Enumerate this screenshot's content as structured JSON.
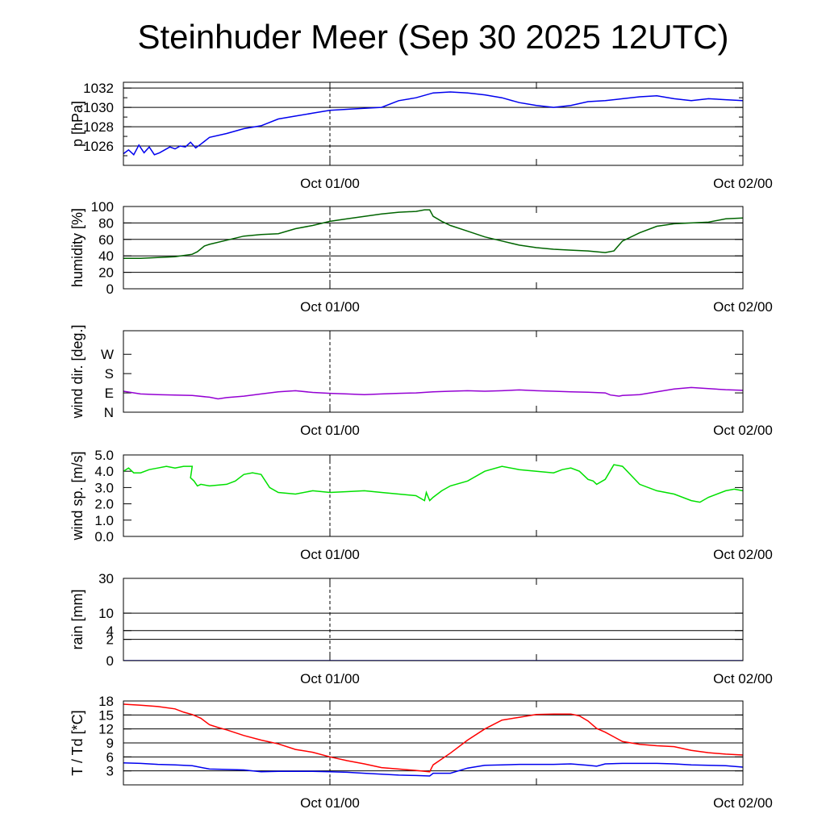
{
  "title": "Steinhuder Meer (Sep 30 2025 12UTC)",
  "time_labels": [
    "Oct 01/00",
    "Oct 02/00"
  ],
  "chart_data": [
    {
      "type": "line",
      "ylabel": "p [hPa]",
      "ylim": [
        1024,
        1032.6
      ],
      "yticks": [
        1026,
        1028,
        1030,
        1032
      ],
      "ytick_labels": [
        "1026",
        "1028",
        "1030",
        "1032"
      ],
      "grid": true,
      "x_unit": "hours since Sep 30 12UTC",
      "xlim": [
        0,
        36
      ],
      "series": [
        {
          "color": "#0000ee",
          "x": [
            0,
            0.3,
            0.6,
            0.9,
            1.2,
            1.5,
            1.8,
            2.1,
            2.4,
            2.7,
            3,
            3.3,
            3.6,
            3.9,
            4.2,
            4.5,
            5,
            6,
            7,
            8,
            9,
            10,
            11,
            12,
            13,
            14,
            15,
            16,
            17,
            18,
            19,
            20,
            21,
            22,
            23,
            24,
            25,
            26,
            27,
            28,
            29,
            30,
            31,
            32,
            33,
            34,
            35,
            36
          ],
          "y": [
            1025.2,
            1025.6,
            1025.1,
            1026.1,
            1025.3,
            1025.9,
            1025.1,
            1025.3,
            1025.6,
            1025.9,
            1025.7,
            1026.0,
            1025.9,
            1026.4,
            1025.8,
            1026.2,
            1026.9,
            1027.3,
            1027.8,
            1028.1,
            1028.8,
            1029.1,
            1029.4,
            1029.7,
            1029.8,
            1029.9,
            1030.0,
            1030.7,
            1031.0,
            1031.5,
            1031.6,
            1031.5,
            1031.3,
            1031.0,
            1030.5,
            1030.2,
            1030.0,
            1030.2,
            1030.6,
            1030.7,
            1030.9,
            1031.1,
            1031.2,
            1030.9,
            1030.7,
            1030.9,
            1030.8,
            1030.7
          ]
        }
      ]
    },
    {
      "type": "line",
      "ylabel": "humidity [%]",
      "ylim": [
        0,
        100
      ],
      "yticks": [
        0,
        20,
        40,
        60,
        80,
        100
      ],
      "ytick_labels": [
        "0",
        "20",
        "40",
        "60",
        "80",
        "100"
      ],
      "grid": true,
      "x_unit": "hours since Sep 30 12UTC",
      "xlim": [
        0,
        36
      ],
      "series": [
        {
          "color": "#006400",
          "x": [
            0,
            1,
            2,
            3,
            4,
            4.3,
            4.7,
            5,
            6,
            7,
            8,
            9,
            10,
            11,
            12,
            13,
            14,
            15,
            16,
            17,
            17.5,
            17.8,
            18,
            18.5,
            19,
            20,
            21,
            22,
            23,
            24,
            25,
            26,
            27,
            28,
            28.5,
            29,
            30,
            31,
            32,
            33,
            34,
            35,
            36
          ],
          "y": [
            37,
            37,
            38,
            39,
            42,
            45,
            52,
            54,
            59,
            64,
            66,
            67,
            73,
            77,
            82,
            85,
            88,
            91,
            93,
            94,
            96,
            96,
            88,
            82,
            77,
            70,
            63,
            58,
            53,
            50,
            48,
            47,
            46,
            44,
            46,
            58,
            68,
            76,
            79,
            80,
            81,
            85,
            86
          ]
        }
      ]
    },
    {
      "type": "line",
      "ylabel": "wind dir. [deg.]",
      "ylim": [
        0,
        380
      ],
      "yticks": [
        0,
        90,
        180,
        270
      ],
      "ytick_labels": [
        "N",
        "E",
        "S",
        "W"
      ],
      "grid": false,
      "x_unit": "hours since Sep 30 12UTC",
      "xlim": [
        0,
        36
      ],
      "series": [
        {
          "color": "#9400d3",
          "x": [
            0,
            1,
            2,
            3,
            4,
            5,
            5.5,
            6,
            7,
            8,
            9,
            10,
            11,
            12,
            13,
            14,
            15,
            16,
            17,
            18,
            19,
            20,
            21,
            22,
            23,
            24,
            25,
            26,
            27,
            28,
            28.3,
            28.8,
            29,
            30,
            31,
            32,
            33,
            34,
            35,
            36
          ],
          "y": [
            98,
            85,
            82,
            80,
            78,
            70,
            62,
            68,
            75,
            85,
            95,
            100,
            92,
            88,
            85,
            82,
            85,
            88,
            90,
            95,
            98,
            100,
            98,
            100,
            104,
            100,
            98,
            95,
            93,
            90,
            80,
            75,
            78,
            82,
            95,
            108,
            115,
            110,
            105,
            102
          ]
        }
      ]
    },
    {
      "type": "line",
      "ylabel": "wind sp. [m/s]",
      "ylim": [
        0,
        5
      ],
      "yticks": [
        0,
        1,
        2,
        3,
        4,
        5
      ],
      "ytick_labels": [
        "0.0",
        "1.0",
        "2.0",
        "3.0",
        "4.0",
        "5.0"
      ],
      "grid": false,
      "x_unit": "hours since Sep 30 12UTC",
      "xlim": [
        0,
        36
      ],
      "series": [
        {
          "color": "#00e000",
          "x": [
            0,
            0.3,
            0.6,
            1,
            1.5,
            2,
            2.5,
            3,
            3.5,
            4,
            3.9,
            4.1,
            4.3,
            4.5,
            5,
            6,
            6.5,
            7,
            7.5,
            8,
            8.5,
            9,
            10,
            11,
            12,
            13,
            14,
            15,
            16,
            17,
            17.5,
            17.6,
            17.8,
            18,
            18.5,
            19,
            20,
            21,
            22,
            23,
            24,
            25,
            25.5,
            26,
            26.5,
            27,
            27.3,
            27.5,
            28,
            28.5,
            29,
            30,
            31,
            32,
            33,
            33.5,
            34,
            35,
            35.5,
            36
          ],
          "y": [
            4.0,
            4.2,
            3.9,
            3.9,
            4.1,
            4.2,
            4.3,
            4.2,
            4.3,
            4.3,
            3.6,
            3.4,
            3.1,
            3.2,
            3.1,
            3.2,
            3.4,
            3.8,
            3.9,
            3.8,
            3.0,
            2.7,
            2.6,
            2.8,
            2.7,
            2.75,
            2.8,
            2.7,
            2.6,
            2.5,
            2.2,
            2.7,
            2.2,
            2.4,
            2.8,
            3.1,
            3.4,
            4.0,
            4.3,
            4.1,
            4.0,
            3.9,
            4.1,
            4.2,
            4.0,
            3.5,
            3.4,
            3.2,
            3.5,
            4.4,
            4.3,
            3.2,
            2.8,
            2.6,
            2.2,
            2.1,
            2.4,
            2.8,
            2.9,
            2.8
          ]
        }
      ]
    },
    {
      "type": "line",
      "ylabel": "rain [mm]",
      "scale": "sqrt",
      "ylim": [
        0,
        30
      ],
      "yticks": [
        0,
        2,
        4,
        10,
        30
      ],
      "ytick_labels": [
        "0",
        "2",
        "4",
        "10",
        "30"
      ],
      "grid": true,
      "x_unit": "hours since Sep 30 12UTC",
      "xlim": [
        0,
        36
      ],
      "series": [
        {
          "color": "#0000ee",
          "x": [
            0,
            36
          ],
          "y": [
            0,
            0
          ]
        }
      ]
    },
    {
      "type": "line",
      "ylabel": "T / Td [*C]",
      "ylim": [
        0,
        18
      ],
      "yticks": [
        3,
        6,
        9,
        12,
        15,
        18
      ],
      "ytick_labels": [
        "3",
        "6",
        "9",
        "12",
        "15",
        "18"
      ],
      "grid": true,
      "x_unit": "hours since Sep 30 12UTC",
      "xlim": [
        0,
        36
      ],
      "series": [
        {
          "color": "#ff0000",
          "x": [
            0,
            1,
            2,
            3,
            3.5,
            4,
            4.5,
            5,
            5.5,
            6,
            7,
            8,
            9,
            10,
            11,
            12,
            13,
            14,
            15,
            16,
            17,
            17.8,
            17.9,
            18,
            19,
            20,
            21,
            22,
            23,
            24,
            25,
            26,
            26.5,
            27,
            27.5,
            28,
            29,
            30,
            31,
            32,
            33,
            34,
            35,
            36
          ],
          "y": [
            17.3,
            17.1,
            16.8,
            16.3,
            15.6,
            15.1,
            14.3,
            12.9,
            12.3,
            11.8,
            10.6,
            9.6,
            8.8,
            7.6,
            7.0,
            6.0,
            5.2,
            4.5,
            3.7,
            3.4,
            3.1,
            2.8,
            3.6,
            4.3,
            6.8,
            9.6,
            12.0,
            13.9,
            14.5,
            15.1,
            15.2,
            15.2,
            14.8,
            13.7,
            12.1,
            11.3,
            9.3,
            8.7,
            8.4,
            8.2,
            7.4,
            6.9,
            6.6,
            6.4
          ]
        },
        {
          "color": "#0000ee",
          "x": [
            0,
            1,
            2,
            3,
            4,
            5,
            6,
            7,
            8,
            9,
            10,
            11,
            12,
            13,
            14,
            15,
            16,
            17,
            17.8,
            18,
            19,
            20,
            21,
            22,
            23,
            24,
            25,
            26,
            27,
            27.5,
            28,
            29,
            30,
            31,
            32,
            33,
            34,
            35,
            36
          ],
          "y": [
            4.7,
            4.6,
            4.4,
            4.3,
            4.1,
            3.4,
            3.3,
            3.2,
            2.8,
            2.9,
            2.9,
            2.9,
            2.8,
            2.7,
            2.5,
            2.3,
            2.1,
            2.0,
            1.9,
            2.5,
            2.5,
            3.6,
            4.2,
            4.3,
            4.4,
            4.4,
            4.4,
            4.5,
            4.2,
            4.0,
            4.5,
            4.6,
            4.6,
            4.6,
            4.5,
            4.3,
            4.2,
            4.1,
            3.8
          ]
        }
      ]
    }
  ]
}
